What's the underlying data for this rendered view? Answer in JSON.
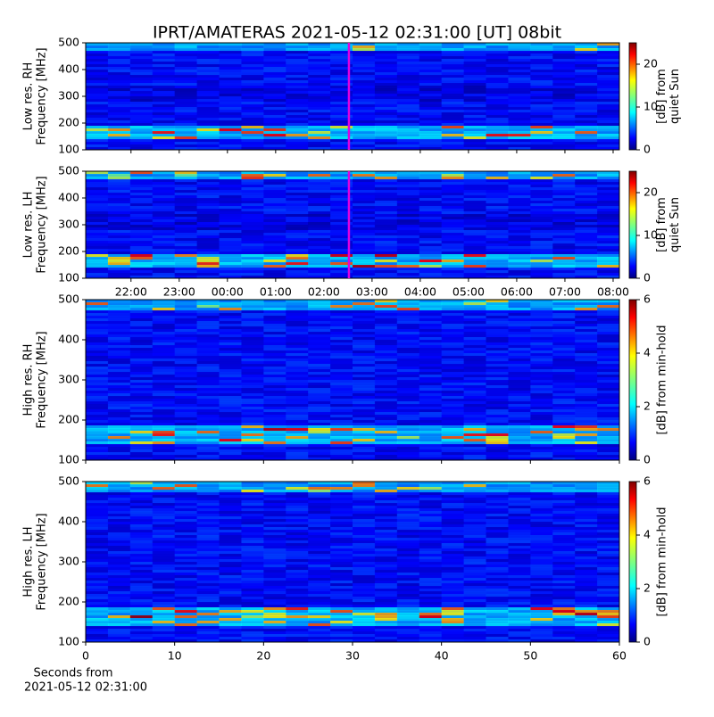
{
  "title": "IPRT/AMATERAS 2021-05-12 02:31:00 [UT]   08bit",
  "chart_data": [
    {
      "type": "heatmap",
      "ylabel": [
        "Low res. RH",
        "Frequency [MHz]"
      ],
      "ylim": [
        100,
        500
      ],
      "yticks": [
        100,
        200,
        300,
        400,
        500
      ],
      "xlim": [
        21.06,
        32.13
      ],
      "vline": 26.52,
      "vline_color": "#e000e0",
      "clim": [
        0,
        25
      ],
      "cticks": [
        0,
        10,
        20
      ],
      "clabel": [
        "[dB] from",
        "quiet Sun"
      ]
    },
    {
      "type": "heatmap",
      "ylabel": [
        "Low res. LH",
        "Frequency [MHz]"
      ],
      "ylim": [
        100,
        500
      ],
      "yticks": [
        100,
        200,
        300,
        400,
        500
      ],
      "xlim": [
        21.06,
        32.13
      ],
      "vline": 26.52,
      "vline_color": "#e000e0",
      "xticks": [
        {
          "value": 22,
          "label": "22:00"
        },
        {
          "value": 23,
          "label": "23:00"
        },
        {
          "value": 24,
          "label": "00:00"
        },
        {
          "value": 25,
          "label": "01:00"
        },
        {
          "value": 26,
          "label": "02:00"
        },
        {
          "value": 27,
          "label": "03:00"
        },
        {
          "value": 28,
          "label": "04:00"
        },
        {
          "value": 29,
          "label": "05:00"
        },
        {
          "value": 30,
          "label": "06:00"
        },
        {
          "value": 31,
          "label": "07:00"
        },
        {
          "value": 32,
          "label": "08:00"
        }
      ],
      "clim": [
        0,
        25
      ],
      "cticks": [
        0,
        10,
        20
      ],
      "clabel": [
        "[dB] from",
        "quiet Sun"
      ]
    },
    {
      "type": "heatmap",
      "ylabel": [
        "High res. RH",
        "Frequency [MHz]"
      ],
      "ylim": [
        100,
        500
      ],
      "yticks": [
        100,
        200,
        300,
        400,
        500
      ],
      "xlim": [
        0,
        60
      ],
      "clim": [
        0,
        6
      ],
      "cticks": [
        0,
        2,
        4,
        6
      ],
      "clabel": [
        "[dB] from min-hold"
      ]
    },
    {
      "type": "heatmap",
      "ylabel": [
        "High res. LH",
        "Frequency [MHz]"
      ],
      "ylim": [
        100,
        500
      ],
      "yticks": [
        100,
        200,
        300,
        400,
        500
      ],
      "xlim": [
        0,
        60
      ],
      "xticks": [
        0,
        10,
        20,
        30,
        40,
        50,
        60
      ],
      "xlabel": [
        "Seconds from",
        "2021-05-12 02:31:00"
      ],
      "clim": [
        0,
        6
      ],
      "cticks": [
        0,
        2,
        4,
        6
      ],
      "clabel": [
        "[dB] from min-hold"
      ]
    }
  ]
}
